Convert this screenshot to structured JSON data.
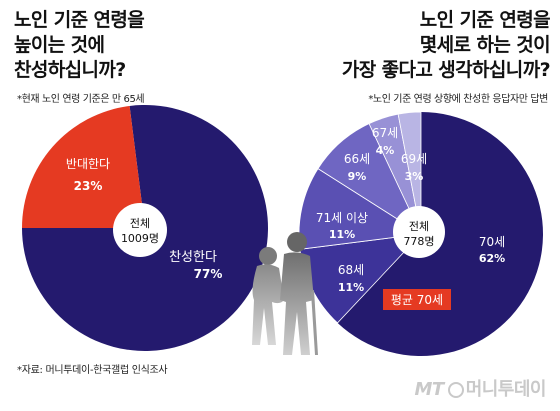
{
  "left": {
    "question_lines": [
      "노인 기준 연령을",
      "높이는 것에",
      "찬성하십니까?"
    ],
    "note": "*현재 노인 연령 기준은 만 65세"
  },
  "right": {
    "question_lines": [
      "노인 기준 연령을",
      "몇세로 하는 것이",
      "가장 좋다고 생각하십니까?"
    ],
    "note": "*노인 기준 연령 상향에 찬성한 응답자만 답변"
  },
  "source": "*자료: 머니투데이-한국갤럽 인식조사",
  "brand": {
    "mt": "MT",
    "name": "머니투데이",
    "color": "#c9c9c9"
  },
  "colors": {
    "navy": "#241a6e",
    "red": "#e53a22",
    "purple1": "#3d3399",
    "purple2": "#5a50b3",
    "purple3": "#6f66c2",
    "purple4": "#9891d6",
    "purple5": "#b9b5e4",
    "badge": "#e53a22"
  },
  "chart_data": [
    {
      "type": "pie",
      "categories": [
        "찬성한다",
        "반대한다"
      ],
      "values": [
        77,
        23
      ],
      "value_labels": [
        "77%",
        "23%"
      ],
      "colors": [
        "#241a6e",
        "#e53a22"
      ],
      "center_label": [
        "전체",
        "1009명"
      ]
    },
    {
      "type": "pie",
      "categories": [
        "70세",
        "68세",
        "71세 이상",
        "66세",
        "67세",
        "69세"
      ],
      "values": [
        62,
        11,
        11,
        9,
        4,
        3
      ],
      "value_labels": [
        "62%",
        "11%",
        "11%",
        "9%",
        "4%",
        "3%"
      ],
      "colors": [
        "#241a6e",
        "#3d3399",
        "#5a50b3",
        "#6f66c2",
        "#9891d6",
        "#b9b5e4"
      ],
      "center_label": [
        "전체",
        "778명"
      ],
      "annotation": "평균 70세"
    }
  ]
}
